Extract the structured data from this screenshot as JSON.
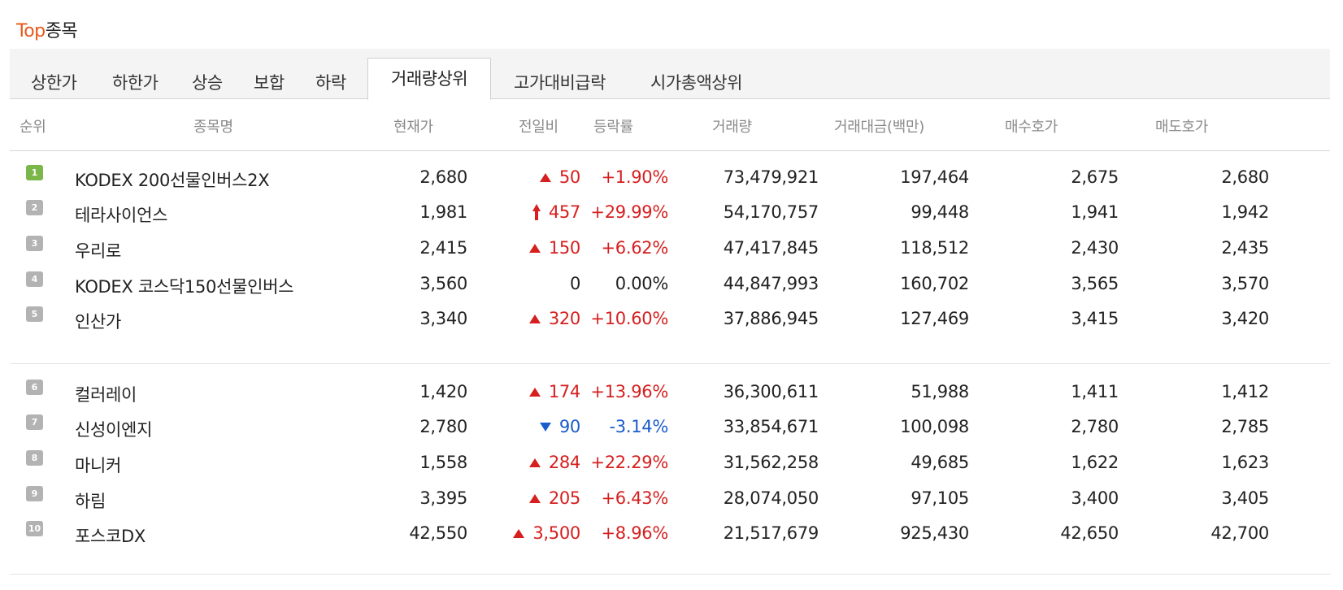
{
  "section": {
    "title_accent": "Top",
    "title_rest": "종목"
  },
  "tabs": [
    {
      "label": "상한가"
    },
    {
      "label": "하한가"
    },
    {
      "label": "상승"
    },
    {
      "label": "보합"
    },
    {
      "label": "하락"
    },
    {
      "label": "거래량상위",
      "active": true
    },
    {
      "label": "고가대비급락"
    },
    {
      "label": "시가총액상위"
    }
  ],
  "columns": {
    "rank": "순위",
    "name": "종목명",
    "current": "현재가",
    "diff": "전일비",
    "rate": "등락률",
    "volume": "거래량",
    "amount": "거래대금(백만)",
    "bid": "매수호가",
    "ask": "매도호가"
  },
  "rows": [
    {
      "rank": "1",
      "name": "KODEX 200선물인버스2X",
      "current": "2,680",
      "diff": "50",
      "direction": "up",
      "rate": "+1.90%",
      "volume": "73,479,921",
      "amount": "197,464",
      "bid": "2,675",
      "ask": "2,680"
    },
    {
      "rank": "2",
      "name": "테라사이언스",
      "current": "1,981",
      "diff": "457",
      "direction": "upper-limit",
      "rate": "+29.99%",
      "volume": "54,170,757",
      "amount": "99,448",
      "bid": "1,941",
      "ask": "1,942"
    },
    {
      "rank": "3",
      "name": "우리로",
      "current": "2,415",
      "diff": "150",
      "direction": "up",
      "rate": "+6.62%",
      "volume": "47,417,845",
      "amount": "118,512",
      "bid": "2,430",
      "ask": "2,435"
    },
    {
      "rank": "4",
      "name": "KODEX 코스닥150선물인버스",
      "current": "3,560",
      "diff": "0",
      "direction": "flat",
      "rate": "0.00%",
      "volume": "44,847,993",
      "amount": "160,702",
      "bid": "3,565",
      "ask": "3,570"
    },
    {
      "rank": "5",
      "name": "인산가",
      "current": "3,340",
      "diff": "320",
      "direction": "up",
      "rate": "+10.60%",
      "volume": "37,886,945",
      "amount": "127,469",
      "bid": "3,415",
      "ask": "3,420"
    },
    {
      "rank": "6",
      "name": "컬러레이",
      "current": "1,420",
      "diff": "174",
      "direction": "up",
      "rate": "+13.96%",
      "volume": "36,300,611",
      "amount": "51,988",
      "bid": "1,411",
      "ask": "1,412"
    },
    {
      "rank": "7",
      "name": "신성이엔지",
      "current": "2,780",
      "diff": "90",
      "direction": "down",
      "rate": "-3.14%",
      "volume": "33,854,671",
      "amount": "100,098",
      "bid": "2,780",
      "ask": "2,785"
    },
    {
      "rank": "8",
      "name": "마니커",
      "current": "1,558",
      "diff": "284",
      "direction": "up",
      "rate": "+22.29%",
      "volume": "31,562,258",
      "amount": "49,685",
      "bid": "1,622",
      "ask": "1,623"
    },
    {
      "rank": "9",
      "name": "하림",
      "current": "3,395",
      "diff": "205",
      "direction": "up",
      "rate": "+6.43%",
      "volume": "28,074,050",
      "amount": "97,105",
      "bid": "3,400",
      "ask": "3,405"
    },
    {
      "rank": "10",
      "name": "포스코DX",
      "current": "42,550",
      "diff": "3,500",
      "direction": "up",
      "rate": "+8.96%",
      "volume": "21,517,679",
      "amount": "925,430",
      "bid": "42,650",
      "ask": "42,700"
    }
  ],
  "colors": {
    "accent": "#e8571c",
    "up": "#d61f1f",
    "down": "#1a5ccc",
    "rank_first": "#7ab648",
    "rank_other": "#b3b3b3"
  }
}
